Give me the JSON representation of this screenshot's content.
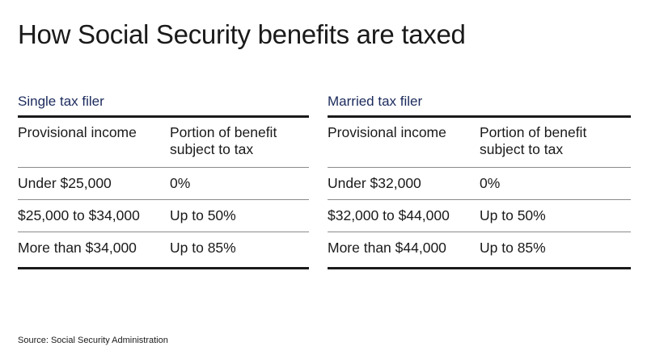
{
  "title": "How Social Security benefits are taxed",
  "tables": [
    {
      "heading": "Single tax filer",
      "columns": [
        "Provisional income",
        "Portion of benefit subject to tax"
      ],
      "rows": [
        [
          "Under $25,000",
          "0%"
        ],
        [
          "$25,000 to $34,000",
          "Up to 50%"
        ],
        [
          "More than $34,000",
          "Up to 85%"
        ]
      ]
    },
    {
      "heading": "Married tax filer",
      "columns": [
        "Provisional income",
        "Portion of benefit subject to tax"
      ],
      "rows": [
        [
          "Under $32,000",
          "0%"
        ],
        [
          "$32,000 to $44,000",
          "Up to 50%"
        ],
        [
          "More than $44,000",
          "Up to 85%"
        ]
      ]
    }
  ],
  "source": "Source: Social Security Administration"
}
